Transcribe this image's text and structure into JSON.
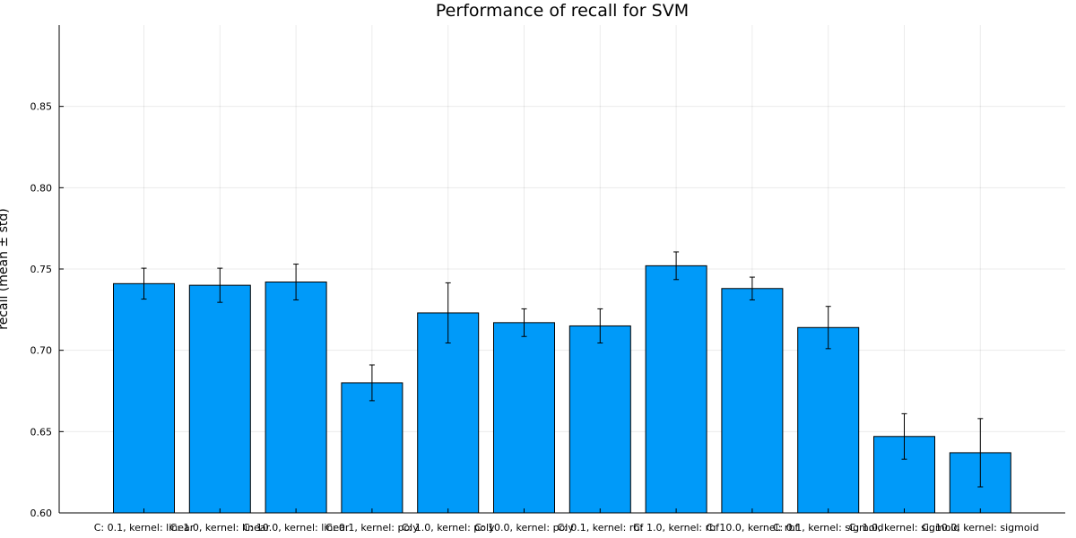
{
  "chart_data": {
    "type": "bar",
    "title": "Performance of recall for SVM",
    "ylabel": "recall (mean ± std)",
    "xlabel": "",
    "ylim": [
      0.6,
      0.9
    ],
    "yticks": [
      0.6,
      0.65,
      0.7,
      0.75,
      0.8,
      0.85
    ],
    "ytick_labels": [
      "0.60",
      "0.65",
      "0.70",
      "0.75",
      "0.80",
      "0.85"
    ],
    "grid": true,
    "legend": "none",
    "bar_color": "#009af9",
    "categories": [
      "C: 0.1, kernel: linear",
      "C: 1.0, kernel: linear",
      "C: 10.0, kernel: linear",
      "C: 0.1, kernel: poly",
      "C: 1.0, kernel: poly",
      "C: 10.0, kernel: poly",
      "C: 0.1, kernel: rbf",
      "C: 1.0, kernel: rbf",
      "C: 10.0, kernel: rbf",
      "C: 0.1, kernel: sigmoid",
      "C: 1.0, kernel: sigmoid",
      "C: 10.0, kernel: sigmoid"
    ],
    "values": [
      0.741,
      0.74,
      0.742,
      0.68,
      0.723,
      0.717,
      0.715,
      0.752,
      0.738,
      0.714,
      0.647,
      0.637
    ],
    "errors": [
      0.0095,
      0.0105,
      0.011,
      0.011,
      0.0185,
      0.0085,
      0.0105,
      0.0085,
      0.007,
      0.013,
      0.014,
      0.021
    ]
  }
}
